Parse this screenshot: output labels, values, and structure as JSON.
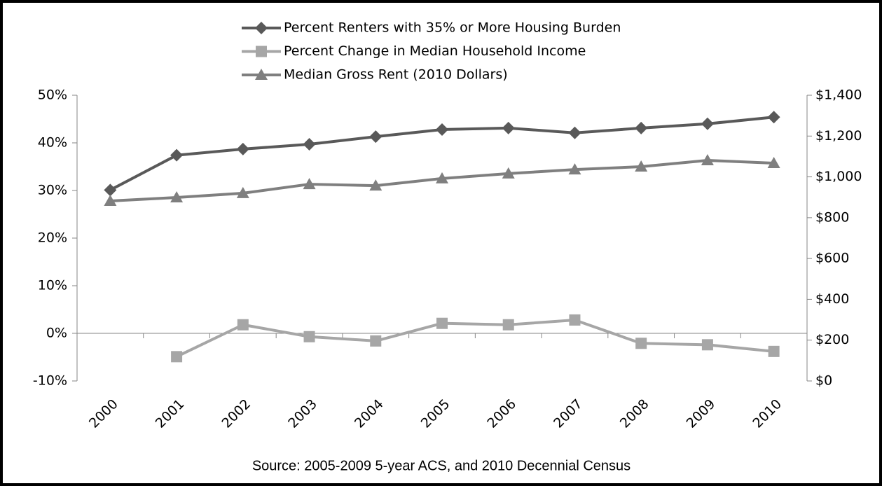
{
  "chart_data": {
    "type": "line",
    "categories": [
      "2000",
      "2001",
      "2002",
      "2003",
      "2004",
      "2005",
      "2006",
      "2007",
      "2008",
      "2009",
      "2010"
    ],
    "series": [
      {
        "name": "Percent Renters with 35% or More Housing Burden",
        "color": "#595959",
        "marker": "diamond",
        "axis": "y",
        "values": [
          30.1,
          37.4,
          38.7,
          39.7,
          41.3,
          42.8,
          43.1,
          42.1,
          43.1,
          44.0,
          45.4
        ]
      },
      {
        "name": "Percent Change in Median Household Income",
        "color": "#a6a6a6",
        "marker": "square",
        "axis": "y",
        "values": [
          null,
          -4.9,
          1.8,
          -0.7,
          -1.6,
          2.1,
          1.8,
          2.8,
          -2.1,
          -2.4,
          -3.8
        ]
      },
      {
        "name": "Median Gross Rent (2010 Dollars)",
        "color": "#7f7f7f",
        "marker": "triangle",
        "axis": "y2",
        "values": [
          882,
          899,
          920,
          964,
          957,
          992,
          1016,
          1036,
          1050,
          1081,
          1067
        ]
      }
    ],
    "ylim": [
      -10,
      50
    ],
    "yticks": [
      {
        "value": -10,
        "label": "-10%"
      },
      {
        "value": 0,
        "label": "0%"
      },
      {
        "value": 10,
        "label": "10%"
      },
      {
        "value": 20,
        "label": "20%"
      },
      {
        "value": 30,
        "label": "30%"
      },
      {
        "value": 40,
        "label": "40%"
      },
      {
        "value": 50,
        "label": "50%"
      }
    ],
    "y2lim": [
      0,
      1400
    ],
    "y2ticks": [
      {
        "value": 0,
        "label": "$0"
      },
      {
        "value": 200,
        "label": "$200"
      },
      {
        "value": 400,
        "label": "$400"
      },
      {
        "value": 600,
        "label": "$600"
      },
      {
        "value": 800,
        "label": "$800"
      },
      {
        "value": 1000,
        "label": "$1,000"
      },
      {
        "value": 1200,
        "label": "$1,200"
      },
      {
        "value": 1400,
        "label": "$1,400"
      }
    ],
    "grid": false,
    "legend": "top",
    "annotation": "Source: 2005-2009 5-year ACS, and 2010 Decennial Census"
  }
}
